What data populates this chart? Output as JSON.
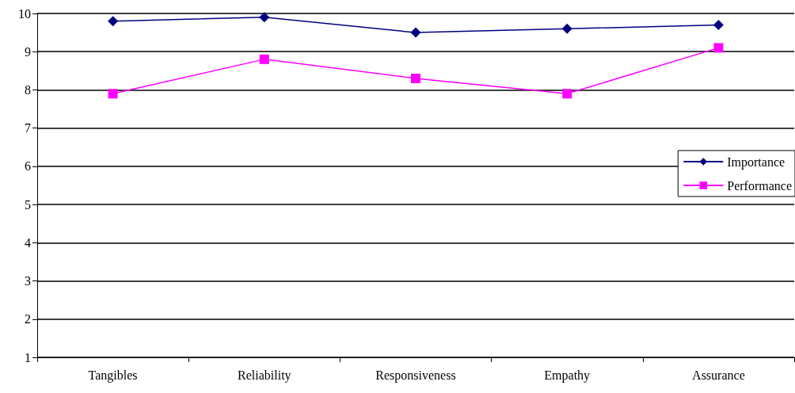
{
  "chart_data": {
    "type": "line",
    "categories": [
      "Tangibles",
      "Reliability",
      "Responsiveness",
      "Empathy",
      "Assurance"
    ],
    "series": [
      {
        "name": "Importance",
        "color": "#000080",
        "marker": "diamond",
        "values": [
          9.8,
          9.9,
          9.5,
          9.6,
          9.7
        ]
      },
      {
        "name": "Performance",
        "color": "#ff00ff",
        "marker": "square",
        "values": [
          7.9,
          8.8,
          8.3,
          7.9,
          9.1
        ]
      }
    ],
    "ylim": [
      1,
      10
    ],
    "yticks": [
      1,
      2,
      3,
      4,
      5,
      6,
      7,
      8,
      9,
      10
    ],
    "grid": "y",
    "legend": "right"
  }
}
